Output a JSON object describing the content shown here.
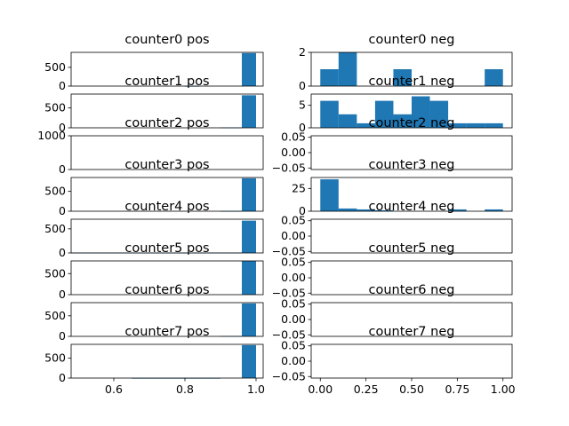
{
  "figure": {
    "background": "#ffffff",
    "bar_color": "#1f77b4"
  },
  "chart_data": [
    {
      "type": "bar",
      "title": "counter0 pos",
      "column": "pos",
      "x_ticks": [],
      "ylim": [
        0,
        900
      ],
      "y_ticks": [
        "0",
        "500"
      ],
      "bins": [
        {
          "x0": 0.96,
          "x1": 1.0,
          "y": 880
        },
        {
          "x0": 0.8,
          "x1": 0.84,
          "y": 5
        }
      ]
    },
    {
      "type": "bar",
      "title": "counter0 neg",
      "column": "neg",
      "x_ticks": [],
      "ylim": [
        0,
        2
      ],
      "y_ticks": [
        "0",
        "2"
      ],
      "bins": [
        {
          "x0": 0.0,
          "x1": 0.1,
          "y": 1
        },
        {
          "x0": 0.1,
          "x1": 0.2,
          "y": 2
        },
        {
          "x0": 0.4,
          "x1": 0.5,
          "y": 1
        },
        {
          "x0": 0.9,
          "x1": 1.0,
          "y": 1
        }
      ]
    },
    {
      "type": "bar",
      "title": "counter1 pos",
      "column": "pos",
      "x_ticks": [],
      "ylim": [
        0,
        850
      ],
      "y_ticks": [
        "0",
        "500"
      ],
      "bins": [
        {
          "x0": 0.96,
          "x1": 1.0,
          "y": 820
        },
        {
          "x0": 0.9,
          "x1": 0.96,
          "y": 8
        }
      ]
    },
    {
      "type": "bar",
      "title": "counter1 neg",
      "column": "neg",
      "x_ticks": [],
      "ylim": [
        0,
        7.5
      ],
      "y_ticks": [
        "0",
        "5"
      ],
      "bins": [
        {
          "x0": 0.0,
          "x1": 0.1,
          "y": 6
        },
        {
          "x0": 0.1,
          "x1": 0.2,
          "y": 3
        },
        {
          "x0": 0.2,
          "x1": 0.3,
          "y": 1
        },
        {
          "x0": 0.3,
          "x1": 0.4,
          "y": 6
        },
        {
          "x0": 0.4,
          "x1": 0.5,
          "y": 3
        },
        {
          "x0": 0.5,
          "x1": 0.6,
          "y": 7
        },
        {
          "x0": 0.6,
          "x1": 0.7,
          "y": 6
        },
        {
          "x0": 0.7,
          "x1": 0.8,
          "y": 1
        },
        {
          "x0": 0.8,
          "x1": 0.9,
          "y": 1
        },
        {
          "x0": 0.9,
          "x1": 1.0,
          "y": 1
        }
      ]
    },
    {
      "type": "bar",
      "title": "counter2 pos",
      "column": "pos",
      "x_ticks": [],
      "ylim": [
        0,
        1000
      ],
      "y_ticks": [
        "0",
        "1000"
      ],
      "bins": []
    },
    {
      "type": "bar",
      "title": "counter2 neg",
      "column": "neg",
      "x_ticks": [],
      "ylim": [
        -0.055,
        0.055
      ],
      "y_ticks": [
        "−0.05",
        "0.00",
        "0.05"
      ],
      "bins": []
    },
    {
      "type": "bar",
      "title": "counter3 pos",
      "column": "pos",
      "x_ticks": [],
      "ylim": [
        0,
        850
      ],
      "y_ticks": [
        "0",
        "500"
      ],
      "bins": [
        {
          "x0": 0.96,
          "x1": 1.0,
          "y": 830
        },
        {
          "x0": 0.9,
          "x1": 0.96,
          "y": 6
        }
      ]
    },
    {
      "type": "bar",
      "title": "counter3 neg",
      "column": "neg",
      "x_ticks": [],
      "ylim": [
        0,
        37
      ],
      "y_ticks": [
        "0",
        "25"
      ],
      "bins": [
        {
          "x0": 0.0,
          "x1": 0.1,
          "y": 35
        },
        {
          "x0": 0.1,
          "x1": 0.2,
          "y": 3
        },
        {
          "x0": 0.2,
          "x1": 0.3,
          "y": 2
        },
        {
          "x0": 0.3,
          "x1": 0.4,
          "y": 1
        },
        {
          "x0": 0.7,
          "x1": 0.8,
          "y": 2
        },
        {
          "x0": 0.9,
          "x1": 1.0,
          "y": 2
        }
      ]
    },
    {
      "type": "bar",
      "title": "counter4 pos",
      "column": "pos",
      "x_ticks": [],
      "ylim": [
        0,
        700
      ],
      "y_ticks": [
        "0",
        "500"
      ],
      "bins": [
        {
          "x0": 0.96,
          "x1": 1.0,
          "y": 670
        },
        {
          "x0": 0.48,
          "x1": 0.96,
          "y": 6
        }
      ]
    },
    {
      "type": "bar",
      "title": "counter4 neg",
      "column": "neg",
      "x_ticks": [],
      "ylim": [
        -0.055,
        0.055
      ],
      "y_ticks": [
        "−0.05",
        "0.00",
        "0.05"
      ],
      "bins": []
    },
    {
      "type": "bar",
      "title": "counter5 pos",
      "column": "pos",
      "x_ticks": [],
      "ylim": [
        0,
        800
      ],
      "y_ticks": [
        "0",
        "500"
      ],
      "bins": [
        {
          "x0": 0.96,
          "x1": 1.0,
          "y": 800
        }
      ]
    },
    {
      "type": "bar",
      "title": "counter5 neg",
      "column": "neg",
      "x_ticks": [],
      "ylim": [
        -0.055,
        0.055
      ],
      "y_ticks": [
        "−0.05",
        "0.00",
        "0.05"
      ],
      "bins": []
    },
    {
      "type": "bar",
      "title": "counter6 pos",
      "column": "pos",
      "x_ticks": [],
      "ylim": [
        0,
        820
      ],
      "y_ticks": [
        "0",
        "500"
      ],
      "bins": [
        {
          "x0": 0.96,
          "x1": 1.0,
          "y": 800
        },
        {
          "x0": 0.9,
          "x1": 0.96,
          "y": 8
        }
      ]
    },
    {
      "type": "bar",
      "title": "counter6 neg",
      "column": "neg",
      "x_ticks": [],
      "ylim": [
        -0.055,
        0.055
      ],
      "y_ticks": [
        "−0.05",
        "0.00",
        "0.05"
      ],
      "bins": []
    },
    {
      "type": "bar",
      "title": "counter7 pos",
      "column": "pos",
      "x_ticks": [
        "0.6",
        "0.8",
        "1.0"
      ],
      "xlim": [
        0.48,
        1.02
      ],
      "ylim": [
        0,
        850
      ],
      "y_ticks": [
        "0",
        "500"
      ],
      "bins": [
        {
          "x0": 0.96,
          "x1": 1.0,
          "y": 830
        },
        {
          "x0": 0.65,
          "x1": 0.9,
          "y": 4
        }
      ]
    },
    {
      "type": "bar",
      "title": "counter7 neg",
      "column": "neg",
      "x_ticks": [
        "0.00",
        "0.25",
        "0.50",
        "0.75",
        "1.00"
      ],
      "xlim": [
        -0.05,
        1.05
      ],
      "ylim": [
        -0.055,
        0.055
      ],
      "y_ticks": [
        "−0.05",
        "0.00",
        "0.05"
      ],
      "bins": []
    }
  ]
}
